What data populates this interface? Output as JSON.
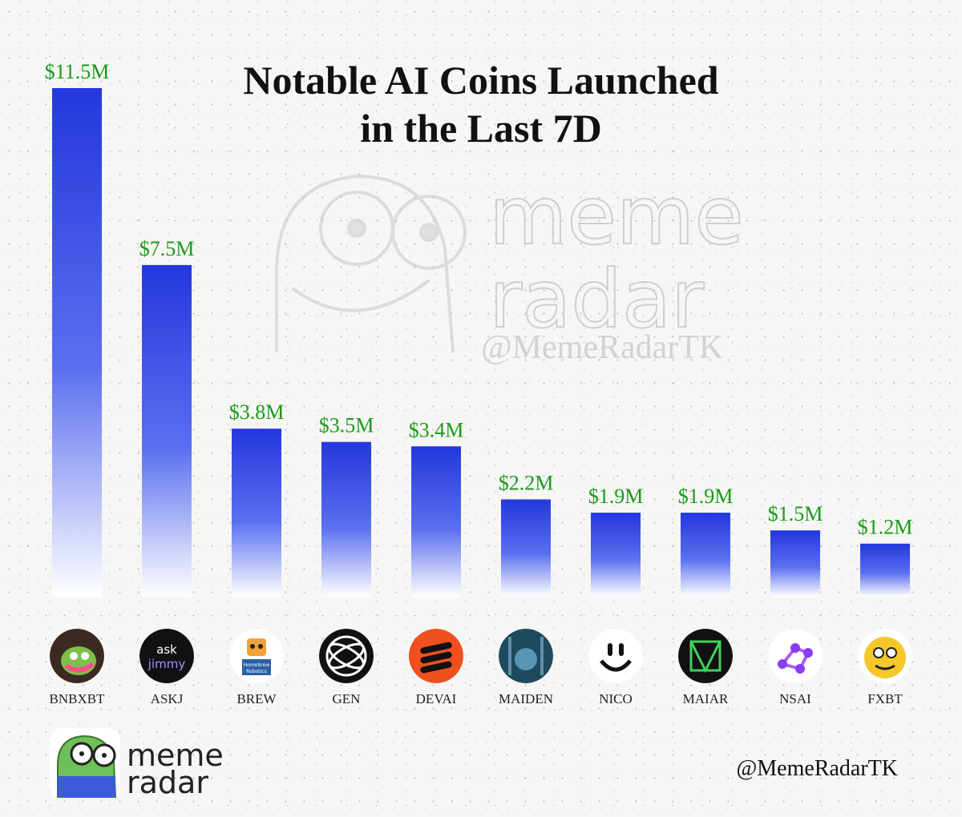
{
  "chart_data": {
    "type": "bar",
    "title": [
      "Notable AI Coins Launched",
      "in the Last 7D"
    ],
    "categories": [
      "BNBXBT",
      "ASKJ",
      "BREW",
      "GEN",
      "DEVAI",
      "MAIDEN",
      "NICO",
      "MAIAR",
      "NSAI",
      "FXBT"
    ],
    "values": [
      11.5,
      7.5,
      3.8,
      3.5,
      3.4,
      2.2,
      1.9,
      1.9,
      1.5,
      1.2
    ],
    "value_labels": [
      "$11.5M",
      "$7.5M",
      "$3.8M",
      "$3.5M",
      "$3.4M",
      "$2.2M",
      "$1.9M",
      "$1.9M",
      "$1.5M",
      "$1.2M"
    ],
    "ylim": [
      0,
      11.5
    ],
    "grid": false,
    "bar_color": "#2a3fe0",
    "label_color": "#1a9a1a"
  },
  "icons": [
    {
      "name": "bnbxbt-coin-icon",
      "bg": "#2a2a2a"
    },
    {
      "name": "askj-coin-icon",
      "bg": "#111111",
      "text_top": "ask",
      "text_bottom": "jimmy"
    },
    {
      "name": "brew-coin-icon",
      "bg": "#ffffff",
      "text": "Homebrew Robotics"
    },
    {
      "name": "gen-coin-icon",
      "bg": "#111111"
    },
    {
      "name": "devai-coin-icon",
      "bg": "#f0501e"
    },
    {
      "name": "maiden-coin-icon",
      "bg": "#1e4a5e"
    },
    {
      "name": "nico-coin-icon",
      "bg": "#ffffff"
    },
    {
      "name": "maiar-coin-icon",
      "bg": "#111111"
    },
    {
      "name": "nsai-coin-icon",
      "bg": "#ffffff"
    },
    {
      "name": "fxbt-coin-icon",
      "bg": "#ffffff"
    }
  ],
  "watermark": {
    "word_1": "meme",
    "word_2": "radar",
    "handle": "@MemeRadarTK"
  },
  "footer": {
    "logo_word_1": "meme",
    "logo_word_2": "radar",
    "handle": "@MemeRadarTK"
  }
}
